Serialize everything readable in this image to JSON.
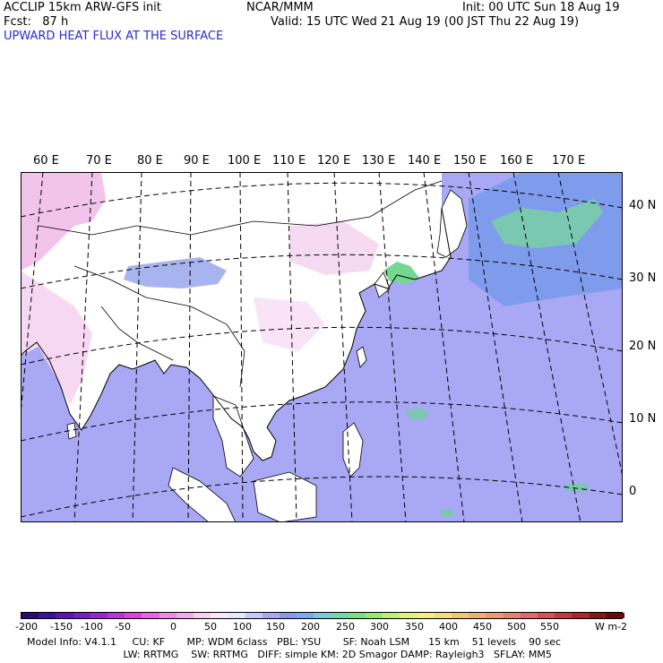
{
  "header": {
    "line1_left": "ACCLIP 15km ARW-GFS init",
    "line1_mid": "NCAR/MMM",
    "line1_right": "Init: 00 UTC Sun 18 Aug 19",
    "line2_left": "Fcst:   87 h",
    "line2_right": "Valid: 15 UTC Wed 21 Aug 19 (00 JST Thu 22 Aug 19)",
    "field_title": "UPWARD HEAT FLUX AT THE SURFACE"
  },
  "map": {
    "lon_labels": [
      "60 E",
      "70 E",
      "80 E",
      "90 E",
      "100 E",
      "110 E",
      "120 E",
      "130 E",
      "140 E",
      "150 E",
      "160 E",
      "170 E"
    ],
    "lat_labels": [
      "40 N",
      "30 N",
      "20 N",
      "10 N",
      "0"
    ],
    "colors": {
      "ocean_neg": "#a8a8f4",
      "land": "#ffffff",
      "land_neg": "#f6d8f2",
      "positive_low": "#7fa0f0",
      "positive_mid": "#74d890",
      "coast": "#000000"
    }
  },
  "colorbar": {
    "labels": [
      "-200",
      "-150",
      "-100",
      "-50",
      "0",
      "50",
      "100",
      "150",
      "200",
      "250",
      "300",
      "350",
      "400",
      "450",
      "500",
      "550"
    ],
    "units": "W m-2",
    "colors": [
      "#2a0a7a",
      "#3a12a0",
      "#5a14b8",
      "#7a1ccc",
      "#9a24d8",
      "#c030dc",
      "#e040e0",
      "#f060e6",
      "#f088ea",
      "#f4aaee",
      "#f8cef4",
      "#fae6f8",
      "#e8e8fc",
      "#c8c8fa",
      "#a8a8f4",
      "#8898ee",
      "#7aa8f0",
      "#78c8e0",
      "#72d8a8",
      "#78e080",
      "#98e870",
      "#c0f070",
      "#e0f47c",
      "#f4f080",
      "#f4e070",
      "#f0c870",
      "#f0b070",
      "#ec9870",
      "#e88070",
      "#e46868",
      "#d85050",
      "#c83838",
      "#b02424",
      "#8a1414",
      "#6a0808"
    ]
  },
  "footer": {
    "line1": "Model Info: V4.1.1     CU: KF       MP: WDM 6class   PBL: YSU       SF: Noah LSM      15 km    51 levels    90 sec",
    "line2": "     LW: RRTMG    SW: RRTMG   DIFF: simple KM: 2D Smagor DAMP: Rayleigh3   SFLAY: MM5"
  }
}
